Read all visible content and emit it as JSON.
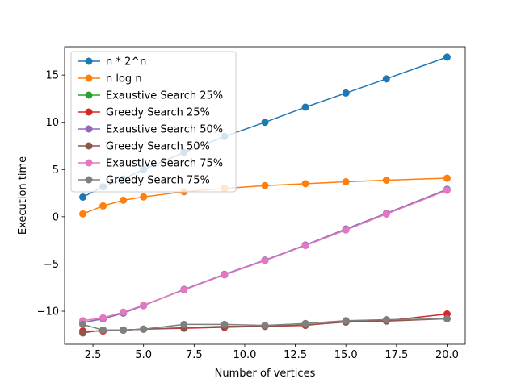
{
  "chart_data": {
    "type": "line",
    "title": "",
    "xlabel": "Number of vertices",
    "ylabel": "Execution time",
    "xlim": [
      1.1,
      20.9
    ],
    "ylim": [
      -13.5,
      18.0
    ],
    "xticks": [
      2.5,
      5.0,
      7.5,
      10.0,
      12.5,
      15.0,
      17.5,
      20.0
    ],
    "xtick_labels": [
      "2.5",
      "5.0",
      "7.5",
      "10.0",
      "12.5",
      "15.0",
      "17.5",
      "20.0"
    ],
    "yticks": [
      -10,
      -5,
      0,
      5,
      10,
      15
    ],
    "ytick_labels": [
      "−10",
      "−5",
      "0",
      "5",
      "10",
      "15"
    ],
    "grid": false,
    "legend_position": "top-left",
    "series": [
      {
        "name": "n * 2^n",
        "color": "#1f77b4",
        "x": [
          2,
          3,
          4,
          5,
          7,
          9,
          11,
          13,
          15,
          17,
          20
        ],
        "y": [
          2.08,
          3.17,
          4.0,
          5.0,
          6.8,
          8.5,
          10.0,
          11.6,
          13.1,
          14.6,
          16.9
        ]
      },
      {
        "name": "n log n",
        "color": "#ff7f0e",
        "x": [
          2,
          3,
          4,
          5,
          7,
          9,
          11,
          13,
          15,
          17,
          20
        ],
        "y": [
          0.3,
          1.15,
          1.75,
          2.1,
          2.65,
          3.0,
          3.3,
          3.5,
          3.7,
          3.87,
          4.08
        ]
      },
      {
        "name": "Exaustive Search 25%",
        "color": "#2ca02c",
        "x": [
          2,
          3,
          4,
          5,
          7,
          9,
          11,
          13,
          15,
          17,
          20
        ],
        "y": [
          -11.2,
          -10.8,
          -10.2,
          -9.4,
          -7.7,
          -6.1,
          -4.6,
          -3.0,
          -1.3,
          0.35,
          2.9
        ]
      },
      {
        "name": "Greedy Search 25%",
        "color": "#d62728",
        "x": [
          2,
          3,
          4,
          5,
          7,
          9,
          11,
          13,
          15,
          17,
          20
        ],
        "y": [
          -12.1,
          -12.1,
          -12.0,
          -11.9,
          -11.8,
          -11.7,
          -11.6,
          -11.5,
          -11.1,
          -11.0,
          -10.3
        ]
      },
      {
        "name": "Exaustive Search 50%",
        "color": "#9467bd",
        "x": [
          2,
          3,
          4,
          5,
          7,
          9,
          11,
          13,
          15,
          17,
          20
        ],
        "y": [
          -11.2,
          -10.8,
          -10.2,
          -9.4,
          -7.7,
          -6.1,
          -4.6,
          -3.0,
          -1.3,
          0.35,
          2.9
        ]
      },
      {
        "name": "Greedy Search 50%",
        "color": "#8c564b",
        "x": [
          2,
          3,
          4,
          5,
          7,
          9,
          11,
          13,
          15,
          17,
          20
        ],
        "y": [
          -12.3,
          -12.0,
          -12.0,
          -11.9,
          -11.75,
          -11.6,
          -11.6,
          -11.45,
          -11.15,
          -11.05,
          -10.8
        ]
      },
      {
        "name": "Exaustive Search 75%",
        "color": "#e377c2",
        "x": [
          2,
          3,
          4,
          5,
          7,
          9,
          11,
          13,
          15,
          17,
          20
        ],
        "y": [
          -11.0,
          -10.7,
          -10.1,
          -9.35,
          -7.75,
          -6.15,
          -4.65,
          -3.05,
          -1.4,
          0.28,
          2.8
        ]
      },
      {
        "name": "Greedy Search 75%",
        "color": "#7f7f7f",
        "x": [
          2,
          3,
          4,
          5,
          7,
          9,
          11,
          13,
          15,
          17,
          20
        ],
        "y": [
          -11.4,
          -12.0,
          -12.0,
          -11.9,
          -11.4,
          -11.4,
          -11.5,
          -11.3,
          -11.0,
          -10.9,
          -10.8
        ]
      }
    ]
  }
}
